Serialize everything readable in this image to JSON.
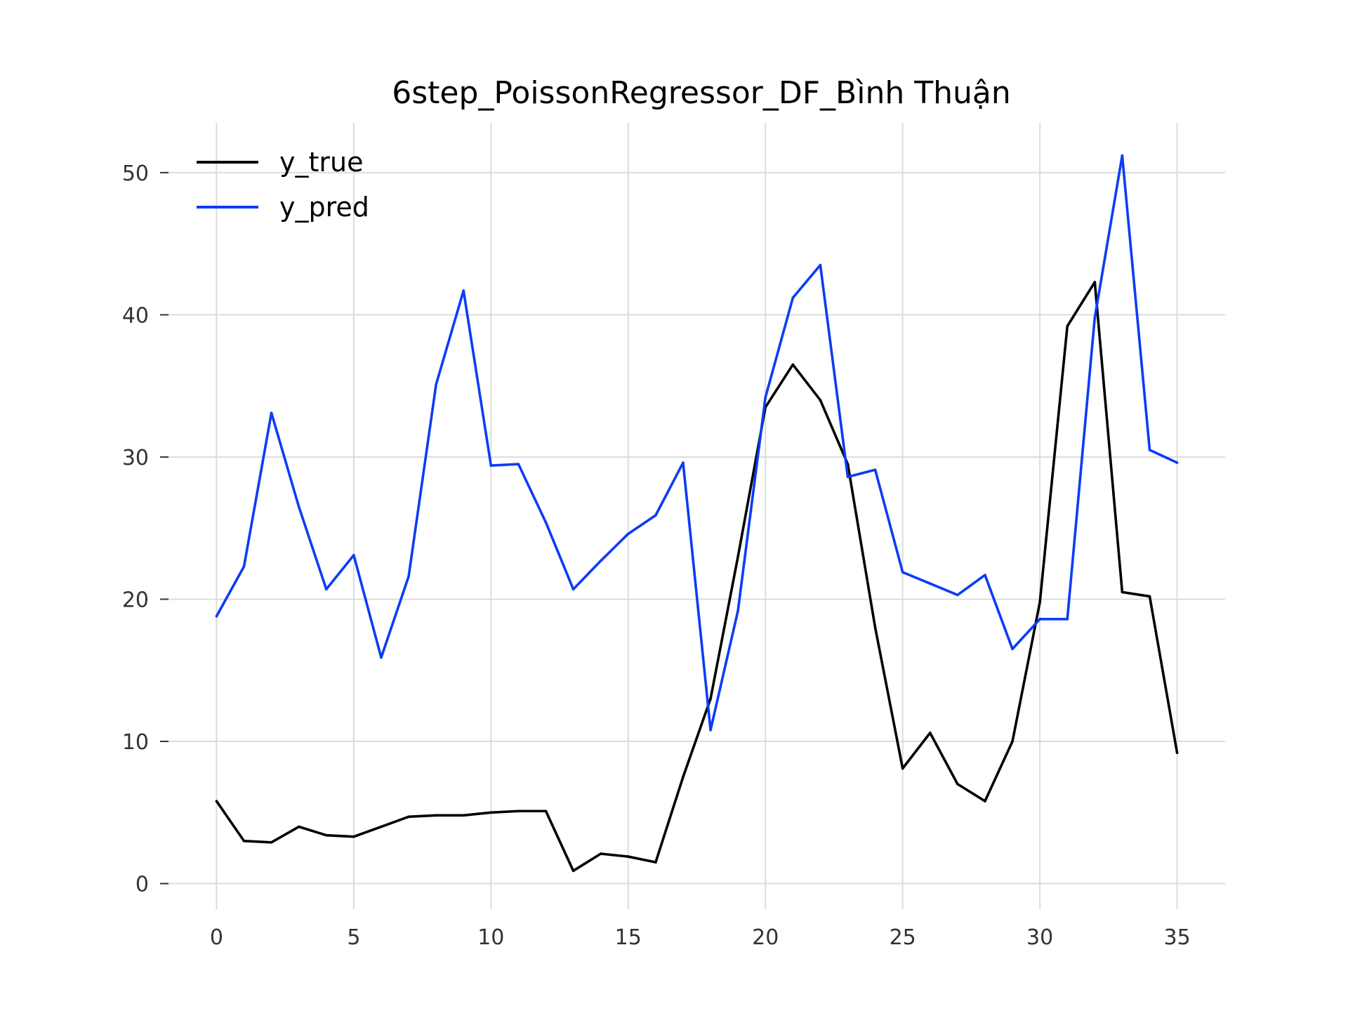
{
  "chart_data": {
    "type": "line",
    "title": "6step_PoissonRegressor_DF_Bình Thuận",
    "xlabel": "",
    "ylabel": "",
    "xlim": [
      -1.75,
      36.75
    ],
    "ylim": [
      -1.8,
      53.5
    ],
    "xticks": [
      0,
      5,
      10,
      15,
      20,
      25,
      30,
      35
    ],
    "yticks": [
      0,
      10,
      20,
      30,
      40,
      50
    ],
    "grid": true,
    "legend_position": "top-left",
    "x": [
      0,
      1,
      2,
      3,
      4,
      5,
      6,
      7,
      8,
      9,
      10,
      11,
      12,
      13,
      14,
      15,
      16,
      17,
      18,
      19,
      20,
      21,
      22,
      23,
      24,
      25,
      26,
      27,
      28,
      29,
      30,
      31,
      32,
      33,
      34,
      35
    ],
    "series": [
      {
        "name": "y_true",
        "color": "#000000",
        "values": [
          5.8,
          3.0,
          2.9,
          4.0,
          3.4,
          3.3,
          4.0,
          4.7,
          4.8,
          4.8,
          5.0,
          5.1,
          5.1,
          0.9,
          2.1,
          1.9,
          1.5,
          7.5,
          13.0,
          23.0,
          33.5,
          36.5,
          34.0,
          29.5,
          18.0,
          8.1,
          10.6,
          7.0,
          5.8,
          10.0,
          19.8,
          39.2,
          42.3,
          20.5,
          20.2,
          9.2
        ]
      },
      {
        "name": "y_pred",
        "color": "#0b3cf5",
        "values": [
          18.8,
          22.3,
          33.1,
          26.5,
          20.7,
          23.1,
          15.9,
          21.6,
          35.1,
          41.7,
          29.4,
          29.5,
          25.4,
          20.7,
          22.7,
          24.6,
          25.9,
          29.6,
          10.8,
          19.2,
          34.2,
          41.2,
          43.5,
          28.6,
          29.1,
          21.9,
          21.1,
          20.3,
          21.7,
          16.5,
          18.6,
          18.6,
          39.8,
          51.2,
          30.5,
          29.6
        ]
      }
    ]
  }
}
